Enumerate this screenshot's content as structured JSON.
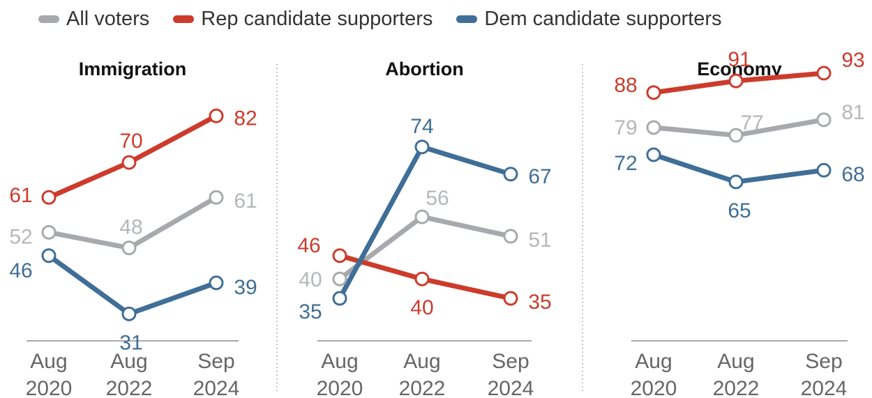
{
  "legend": [
    {
      "name": "All voters",
      "color": "#a7a9ac"
    },
    {
      "name": "Rep candidate supporters",
      "color": "#cc3b2c"
    },
    {
      "name": "Dem candidate supporters",
      "color": "#3f6e96"
    }
  ],
  "chart_data": [
    {
      "type": "line",
      "title": "Immigration",
      "categories": [
        "Aug 2020",
        "Aug 2022",
        "Sep 2024"
      ],
      "series": [
        {
          "name": "All voters",
          "values": [
            52,
            48,
            61
          ]
        },
        {
          "name": "Rep candidate supporters",
          "values": [
            61,
            70,
            82
          ]
        },
        {
          "name": "Dem candidate supporters",
          "values": [
            46,
            31,
            39
          ]
        }
      ]
    },
    {
      "type": "line",
      "title": "Abortion",
      "categories": [
        "Aug 2020",
        "Aug 2022",
        "Sep 2024"
      ],
      "series": [
        {
          "name": "All voters",
          "values": [
            40,
            56,
            51
          ]
        },
        {
          "name": "Rep candidate supporters",
          "values": [
            46,
            40,
            35
          ]
        },
        {
          "name": "Dem candidate supporters",
          "values": [
            35,
            74,
            67
          ]
        }
      ]
    },
    {
      "type": "line",
      "title": "Economy",
      "categories": [
        "Aug 2020",
        "Aug 2022",
        "Sep 2024"
      ],
      "series": [
        {
          "name": "All voters",
          "values": [
            79,
            77,
            81
          ]
        },
        {
          "name": "Rep candidate supporters",
          "values": [
            88,
            91,
            93
          ]
        },
        {
          "name": "Dem candidate supporters",
          "values": [
            72,
            65,
            68
          ]
        }
      ]
    }
  ]
}
